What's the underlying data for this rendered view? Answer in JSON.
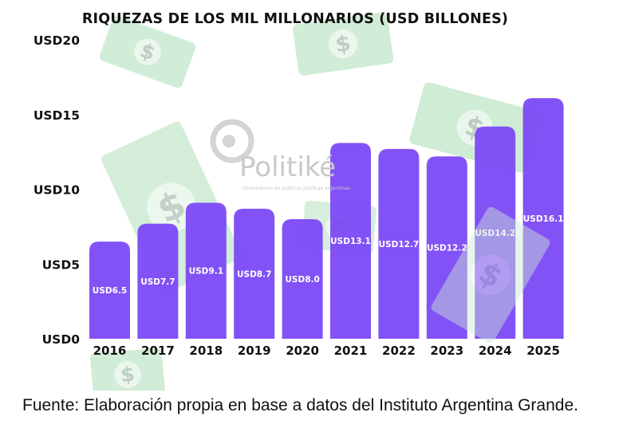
{
  "chart_data": {
    "type": "bar",
    "title": "RIQUEZAS DE LOS MIL MILLONARIOS (USD BILLONES)",
    "categories": [
      "2016",
      "2017",
      "2018",
      "2019",
      "2020",
      "2021",
      "2022",
      "2023",
      "2024",
      "2025"
    ],
    "values": [
      6.5,
      7.7,
      9.1,
      8.7,
      8.0,
      13.1,
      12.7,
      12.2,
      14.2,
      16.1
    ],
    "value_labels": [
      "USD6.5",
      "USD7.7",
      "USD9.1",
      "USD8.7",
      "USD8.0",
      "USD13.1",
      "USD12.7",
      "USD12.2",
      "USD14.2",
      "USD16.1"
    ],
    "y_ticks": [
      0,
      5,
      10,
      15,
      20
    ],
    "y_tick_labels": [
      "USD0",
      "USD5",
      "USD10",
      "USD15",
      "USD20"
    ],
    "ylim": [
      0,
      20
    ],
    "xlabel": "",
    "ylabel": "",
    "grid": false,
    "bar_color": "#7a45f5"
  },
  "watermark": {
    "name": "Politiké",
    "subtitle": "Observatorio de políticas públicas argentinas",
    "decoration_icon": "dollar-bill-icon"
  },
  "source": "Fuente: Elaboración propia en base a datos del Instituto Argentina Grande."
}
